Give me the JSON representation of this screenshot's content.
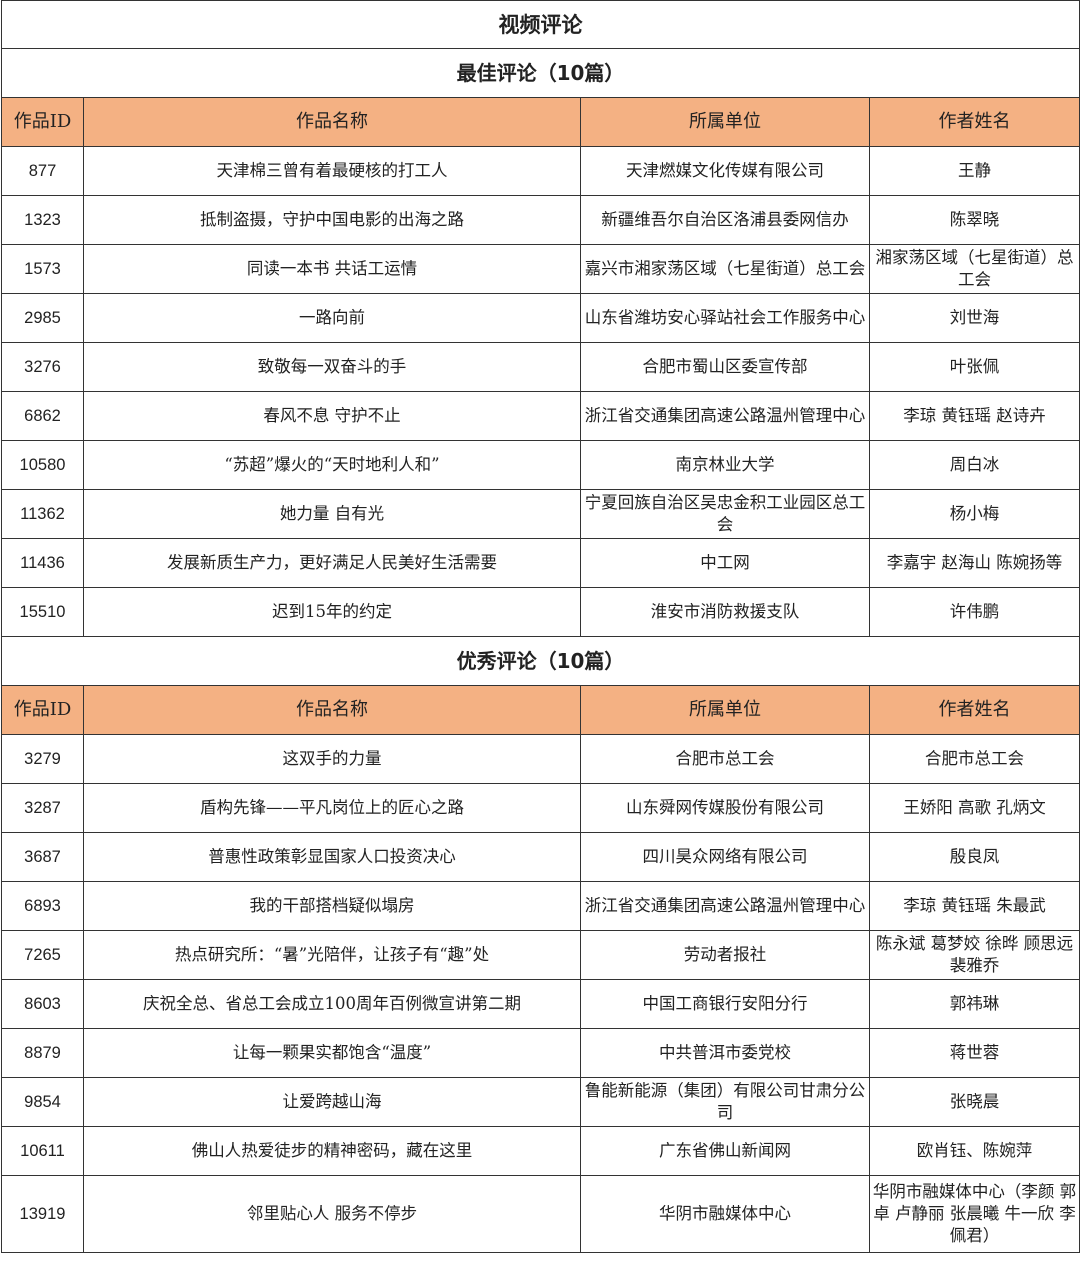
{
  "title": "视频评论",
  "header_color": "#F4B183",
  "columns": [
    "作品ID",
    "作品名称",
    "所属单位",
    "作者姓名"
  ],
  "sections": [
    {
      "heading": "最佳评论（10篇）",
      "rows": [
        [
          "877",
          "天津棉三曾有着最硬核的打工人",
          "天津燃媒文化传媒有限公司",
          "王静"
        ],
        [
          "1323",
          "抵制盗摄，守护中国电影的出海之路",
          "新疆维吾尔自治区洛浦县委网信办",
          "陈翠晓"
        ],
        [
          "1573",
          "同读一本书 共话工运情",
          "嘉兴市湘家荡区域（七星街道）总工会",
          "湘家荡区域（七星街道）总工会"
        ],
        [
          "2985",
          "一路向前",
          "山东省潍坊安心驿站社会工作服务中心",
          "刘世海"
        ],
        [
          "3276",
          "致敬每一双奋斗的手",
          "合肥市蜀山区委宣传部",
          "叶张佩"
        ],
        [
          "6862",
          "春风不息 守护不止",
          "浙江省交通集团高速公路温州管理中心",
          "李琼  黄钰瑶  赵诗卉"
        ],
        [
          "10580",
          "“苏超”爆火的“天时地利人和”",
          "南京林业大学",
          "周白冰"
        ],
        [
          "11362",
          "她力量 自有光",
          "宁夏回族自治区吴忠金积工业园区总工会",
          "杨小梅"
        ],
        [
          "11436",
          "发展新质生产力，更好满足人民美好生活需要",
          "中工网",
          "李嘉宇  赵海山  陈婉扬等"
        ],
        [
          "15510",
          "迟到15年的约定",
          "淮安市消防救援支队",
          "许伟鹏"
        ]
      ]
    },
    {
      "heading": "优秀评论（10篇）",
      "rows": [
        [
          "3279",
          "这双手的力量",
          "合肥市总工会",
          "合肥市总工会"
        ],
        [
          "3287",
          "盾构先锋——平凡岗位上的匠心之路",
          "山东舜网传媒股份有限公司",
          "王娇阳  高歌  孔炳文"
        ],
        [
          "3687",
          "普惠性政策彰显国家人口投资决心",
          "四川昊众网络有限公司",
          "殷良凤"
        ],
        [
          "6893",
          "我的干部搭档疑似塌房",
          "浙江省交通集团高速公路温州管理中心",
          "李琼  黄钰瑶  朱最武"
        ],
        [
          "7265",
          "热点研究所：“暑”光陪伴，让孩子有“趣”处",
          "劳动者报社",
          "陈永斌  葛梦姣  徐晔 顾思远  裴雅乔"
        ],
        [
          "8603",
          "庆祝全总、省总工会成立100周年百例微宣讲第二期",
          "中国工商银行安阳分行",
          "郭祎琳"
        ],
        [
          "8879",
          "让每一颗果实都饱含“温度”",
          "中共普洱市委党校",
          "蒋世蓉"
        ],
        [
          "9854",
          "让爱跨越山海",
          "鲁能新能源（集团）有限公司甘肃分公司",
          "张晓晨"
        ],
        [
          "10611",
          "佛山人热爱徒步的精神密码，藏在这里",
          "广东省佛山新闻网",
          "欧肖钰、陈婉萍"
        ],
        [
          "13919",
          "邻里贴心人 服务不停步",
          "华阴市融媒体中心",
          "华阴市融媒体中心（李颜  郭卓  卢静丽 张晨曦  牛一欣  李佩君）"
        ]
      ]
    }
  ]
}
